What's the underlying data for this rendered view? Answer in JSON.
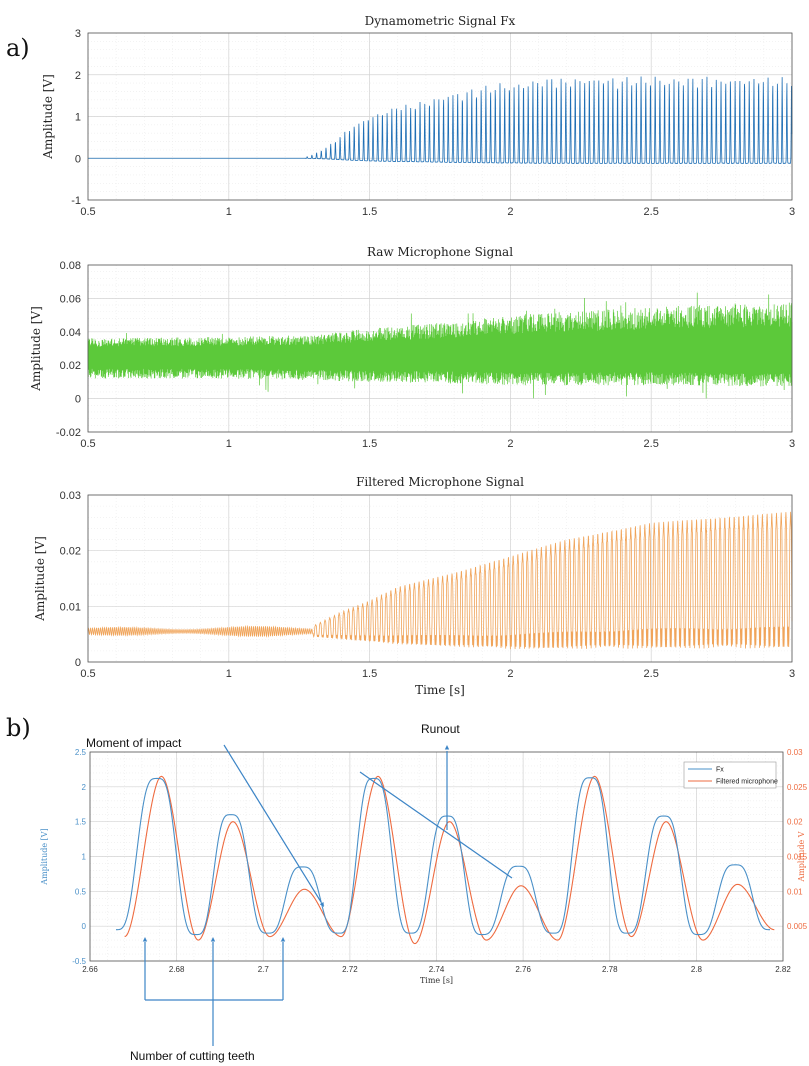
{
  "panel_labels": {
    "a": "a)",
    "b": "b)"
  },
  "chart_data": [
    {
      "type": "line",
      "title": "Dynamometric Signal Fx",
      "xlabel": "",
      "ylabel": "Amplitude [V]",
      "xlim": [
        0.5,
        3
      ],
      "ylim": [
        -1,
        3
      ],
      "x_ticks": [
        0.5,
        1,
        1.5,
        2,
        2.5,
        3
      ],
      "y_ticks": [
        -1,
        0,
        1,
        2,
        3
      ],
      "grid": true,
      "color": "#1f6fb5",
      "series": [
        {
          "signal": "pulse-train",
          "baseline": 0,
          "onset_x": 1.27,
          "pulse_period": 0.0167,
          "envelope_x": [
            1.27,
            1.3,
            1.35,
            1.4,
            1.45,
            1.5,
            1.6,
            1.7,
            1.8,
            1.9,
            2.0,
            2.1,
            2.2,
            2.5,
            3.0
          ],
          "envelope_peak": [
            0.02,
            0.1,
            0.3,
            0.6,
            0.9,
            1.1,
            1.35,
            1.5,
            1.7,
            1.85,
            1.95,
            2.05,
            2.1,
            2.1,
            2.1
          ]
        }
      ]
    },
    {
      "type": "line",
      "title": "Raw Microphone Signal",
      "xlabel": "",
      "ylabel": "Amplitude [V]",
      "xlim": [
        0.5,
        3
      ],
      "ylim": [
        -0.02,
        0.08
      ],
      "x_ticks": [
        0.5,
        1,
        1.5,
        2,
        2.5,
        3
      ],
      "y_ticks": [
        -0.02,
        0,
        0.02,
        0.04,
        0.06,
        0.08
      ],
      "grid": true,
      "color": "#5cc93a",
      "series": [
        {
          "signal": "noise-band",
          "center": 0.025,
          "envelope_x": [
            0.5,
            1.0,
            1.3,
            1.5,
            1.8,
            2.0,
            2.5,
            3.0
          ],
          "envelope_upper": [
            0.036,
            0.037,
            0.038,
            0.042,
            0.046,
            0.05,
            0.055,
            0.058
          ],
          "envelope_lower": [
            0.012,
            0.012,
            0.011,
            0.01,
            0.009,
            0.008,
            0.008,
            0.007
          ]
        }
      ]
    },
    {
      "type": "line",
      "title": "Filtered Microphone Signal",
      "xlabel": "Time [s]",
      "ylabel": "Amplitude [V]",
      "xlim": [
        0.5,
        3
      ],
      "ylim": [
        0,
        0.03
      ],
      "x_ticks": [
        0.5,
        1,
        1.5,
        2,
        2.5,
        3
      ],
      "y_ticks": [
        0,
        0.01,
        0.02,
        0.03
      ],
      "grid": true,
      "color": "#f0a45a",
      "series": [
        {
          "signal": "oscillation",
          "center": 0.0055,
          "onset_x": 1.3,
          "envelope_x": [
            0.5,
            1.3,
            1.4,
            1.5,
            1.6,
            1.8,
            2.0,
            2.2,
            2.5,
            3.0
          ],
          "envelope_peak": [
            0.0062,
            0.0065,
            0.009,
            0.011,
            0.0135,
            0.016,
            0.019,
            0.022,
            0.025,
            0.027
          ],
          "envelope_trough": [
            0.0048,
            0.0045,
            0.004,
            0.0035,
            0.003,
            0.0025,
            0.002,
            0.002,
            0.002,
            0.002
          ]
        }
      ]
    },
    {
      "type": "line",
      "title": "",
      "xlabel": "Time [s]",
      "ylabel_left": "Amplitude [V]",
      "ylabel_right": "Amplitude V",
      "xlim": [
        2.66,
        2.82
      ],
      "ylim_left": [
        -0.5,
        2.5
      ],
      "ylim_right": [
        0,
        0.03
      ],
      "x_ticks": [
        2.66,
        2.68,
        2.7,
        2.72,
        2.74,
        2.76,
        2.78,
        2.8,
        2.82
      ],
      "y_ticks_left": [
        -0.5,
        0,
        0.5,
        1,
        1.5,
        2,
        2.5
      ],
      "y_ticks_right": [
        0.005,
        0.01,
        0.015,
        0.02,
        0.025,
        0.03
      ],
      "grid": true,
      "legend_position": "top-right",
      "series": [
        {
          "name": "Fx",
          "color": "#4a90c8",
          "axis": "left",
          "baseline": 0,
          "peaks_x": [
            2.6755,
            2.6925,
            2.709,
            2.7255,
            2.7425,
            2.759,
            2.7755,
            2.7925,
            2.809
          ],
          "peaks_y": [
            2.12,
            1.6,
            0.85,
            2.12,
            1.58,
            0.86,
            2.13,
            1.58,
            0.88
          ],
          "troughs_x": [
            2.666,
            2.6845,
            2.701,
            2.7175,
            2.734,
            2.7505,
            2.767,
            2.784,
            2.8005,
            2.817
          ],
          "troughs_y": [
            -0.05,
            -0.12,
            -0.1,
            -0.1,
            -0.1,
            -0.12,
            -0.1,
            -0.1,
            -0.12,
            -0.05
          ]
        },
        {
          "name": "Filtered microphone",
          "color": "#ee6b40",
          "axis": "right",
          "peaks_x": [
            2.6765,
            2.693,
            2.7095,
            2.7265,
            2.743,
            2.7595,
            2.7765,
            2.793,
            2.8095
          ],
          "peaks_y": [
            0.0265,
            0.02,
            0.0103,
            0.0265,
            0.02,
            0.0108,
            0.0265,
            0.02,
            0.011
          ],
          "troughs_x": [
            2.668,
            2.685,
            2.7015,
            2.718,
            2.735,
            2.7515,
            2.768,
            2.785,
            2.8015,
            2.818
          ],
          "troughs_y": [
            0.0035,
            0.003,
            0.0035,
            0.0035,
            0.0025,
            0.003,
            0.003,
            0.0035,
            0.003,
            0.0045
          ]
        }
      ],
      "annotations": [
        {
          "text": "Moment of impact"
        },
        {
          "text": "Runout"
        },
        {
          "text": "Number of cutting teeth"
        }
      ]
    }
  ]
}
